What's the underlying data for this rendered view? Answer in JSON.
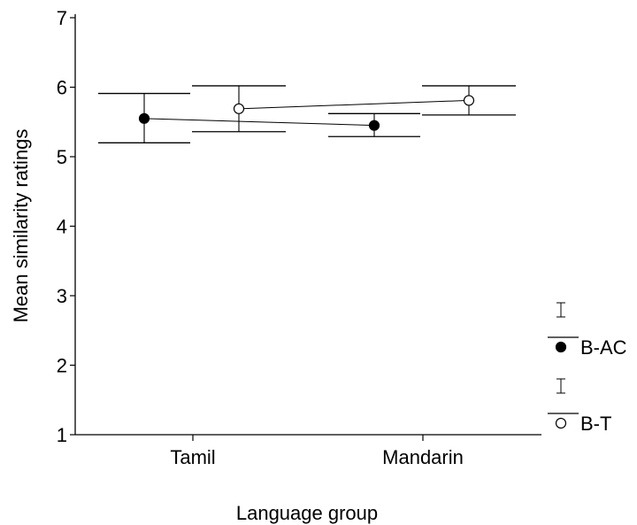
{
  "chart_data": {
    "type": "scatter",
    "xlabel": "Language group",
    "ylabel": "Mean similarity ratings",
    "categories": [
      "Tamil",
      "Mandarin"
    ],
    "ylim": [
      1,
      7
    ],
    "yticks": [
      "1",
      "2",
      "3",
      "4",
      "5",
      "6",
      "7"
    ],
    "series": [
      {
        "name": "B-AC",
        "marker": "filled-circle",
        "color": "#000000",
        "values": [
          5.55,
          5.45
        ],
        "error_low": [
          5.2,
          5.29
        ],
        "error_high": [
          5.91,
          5.62
        ]
      },
      {
        "name": "B-T",
        "marker": "open-circle",
        "color": "#000000",
        "values": [
          5.69,
          5.81
        ],
        "error_low": [
          5.36,
          5.6
        ],
        "error_high": [
          6.02,
          6.02
        ]
      }
    ],
    "legend_position": "right",
    "grid": false
  }
}
